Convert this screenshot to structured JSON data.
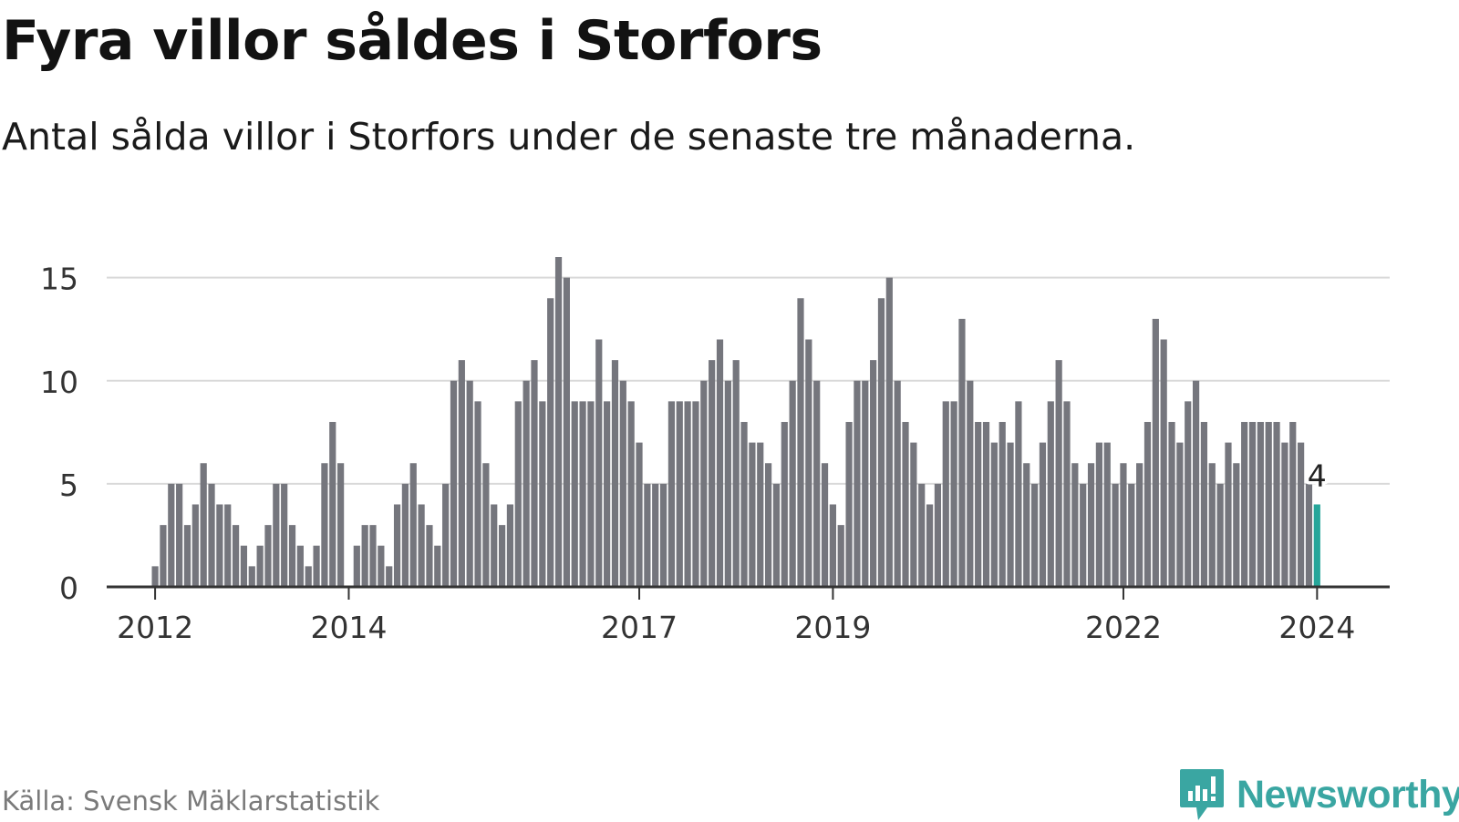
{
  "header": {
    "title": "Fyra villor såldes i Storfors",
    "subtitle": "Antal sålda villor i Storfors under de senaste tre månaderna."
  },
  "footer": {
    "source": "Källa: Svensk Mäklarstatistik",
    "brand": "Newsworthy"
  },
  "colors": {
    "bar": "#75767d",
    "highlight": "#26a69a",
    "grid": "#d9d9d9",
    "axis": "#333333",
    "brand": "#3aa6a2"
  },
  "chart_data": {
    "type": "bar",
    "title": "Fyra villor såldes i Storfors",
    "subtitle": "Antal sålda villor i Storfors under de senaste tre månaderna.",
    "xlabel": "",
    "ylabel": "",
    "ylim": [
      0,
      16
    ],
    "yticks": [
      0,
      5,
      10,
      15
    ],
    "grid": true,
    "start_year": 2011.5,
    "end_year": 2024.75,
    "first_bar": 2012.0,
    "bar_step": 0.08333,
    "xticks": [
      {
        "label": "2012",
        "value": 2012
      },
      {
        "label": "2014",
        "value": 2014
      },
      {
        "label": "2017",
        "value": 2017
      },
      {
        "label": "2019",
        "value": 2019
      },
      {
        "label": "2022",
        "value": 2022
      },
      {
        "label": "2024",
        "value": 2024
      }
    ],
    "values": [
      1,
      3,
      5,
      5,
      3,
      4,
      6,
      5,
      4,
      4,
      3,
      2,
      1,
      2,
      3,
      5,
      5,
      3,
      2,
      1,
      2,
      6,
      8,
      6,
      0,
      2,
      3,
      3,
      2,
      1,
      4,
      5,
      6,
      4,
      3,
      2,
      5,
      10,
      11,
      10,
      9,
      6,
      4,
      3,
      4,
      9,
      10,
      11,
      9,
      14,
      16,
      15,
      9,
      9,
      9,
      12,
      9,
      11,
      10,
      9,
      7,
      5,
      5,
      5,
      9,
      9,
      9,
      9,
      10,
      11,
      12,
      10,
      11,
      8,
      7,
      7,
      6,
      5,
      8,
      10,
      14,
      12,
      10,
      6,
      4,
      3,
      8,
      10,
      10,
      11,
      14,
      15,
      10,
      8,
      7,
      5,
      4,
      5,
      9,
      9,
      13,
      10,
      8,
      8,
      7,
      8,
      7,
      9,
      6,
      5,
      7,
      9,
      11,
      9,
      6,
      5,
      6,
      7,
      7,
      5,
      6,
      5,
      6,
      8,
      13,
      12,
      8,
      7,
      9,
      10,
      8,
      6,
      5,
      7,
      6,
      8,
      8,
      8,
      8,
      8,
      7,
      8,
      7,
      5,
      4
    ],
    "highlight_index": 144,
    "highlight_label": "4"
  }
}
